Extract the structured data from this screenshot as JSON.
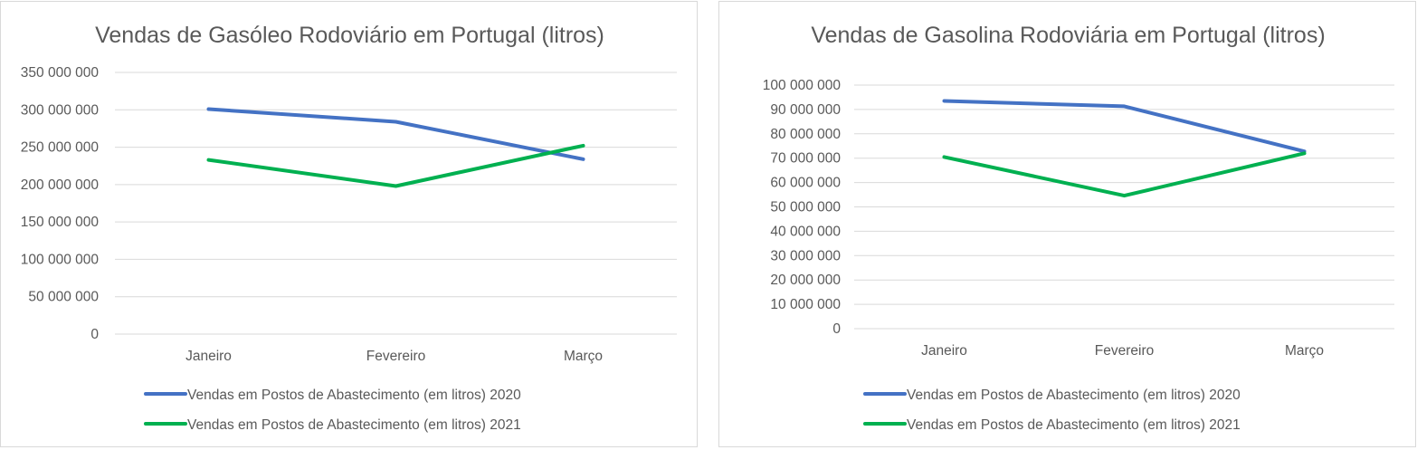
{
  "chart_data": [
    {
      "type": "line",
      "title": "Vendas de Gasóleo Rodoviário em Portugal (litros)",
      "categories": [
        "Janeiro",
        "Fevereiro",
        "Março"
      ],
      "ylim": [
        0,
        350000000
      ],
      "yticks": [
        "0",
        "50 000 000",
        "100 000 000",
        "150 000 000",
        "200 000 000",
        "250 000 000",
        "300 000 000",
        "350 000 000"
      ],
      "grid": true,
      "legend_position": "bottom",
      "series": [
        {
          "name": "Vendas em Postos de Abastecimento  (em litros) 2020",
          "color": "#4472C4",
          "values": [
            301000000,
            284000000,
            234000000
          ]
        },
        {
          "name": "Vendas em Postos de Abastecimento  (em litros) 2021",
          "color": "#00B050",
          "values": [
            233000000,
            198000000,
            252000000
          ]
        }
      ]
    },
    {
      "type": "line",
      "title": "Vendas de Gasolina Rodoviária em Portugal (litros)",
      "categories": [
        "Janeiro",
        "Fevereiro",
        "Março"
      ],
      "ylim": [
        0,
        100000000
      ],
      "yticks": [
        "0",
        "10 000 000",
        "20 000 000",
        "30 000 000",
        "40 000 000",
        "50 000 000",
        "60 000 000",
        "70 000 000",
        "80 000 000",
        "90 000 000",
        "100 000 000"
      ],
      "grid": true,
      "legend_position": "bottom",
      "series": [
        {
          "name": "Vendas em Postos de Abastecimento  (em litros) 2020",
          "color": "#4472C4",
          "values": [
            93500000,
            91300000,
            72800000
          ]
        },
        {
          "name": "Vendas em Postos de Abastecimento  (em litros) 2021",
          "color": "#00B050",
          "values": [
            70500000,
            54600000,
            72000000
          ]
        }
      ]
    }
  ]
}
